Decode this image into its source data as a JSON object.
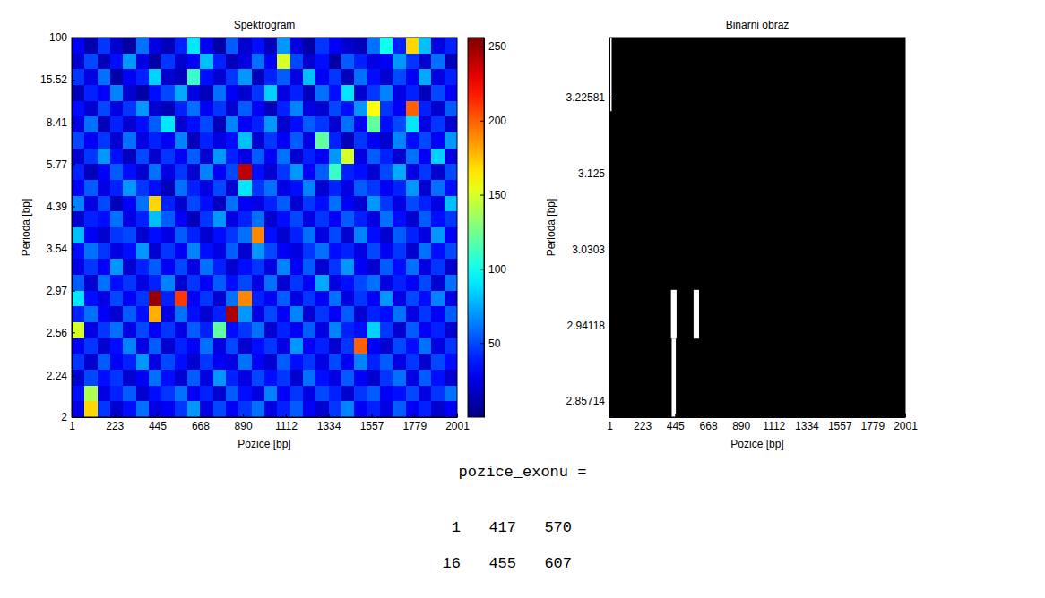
{
  "chart_data": [
    {
      "type": "heatmap",
      "title": "Spektrogram",
      "x_label": "Pozice [bp]",
      "y_label": "Perioda [bp]",
      "xlim": [
        1,
        2001
      ],
      "xticks": [
        1,
        223,
        445,
        668,
        890,
        1112,
        1334,
        1557,
        1779,
        2001
      ],
      "ylim": [
        2,
        100
      ],
      "yticks": [
        2,
        2.24,
        2.56,
        2.97,
        3.54,
        4.39,
        5.77,
        8.41,
        15.52,
        100
      ],
      "color_range": [
        0,
        256
      ],
      "color_ticks": [
        50,
        100,
        150,
        200,
        250
      ],
      "cells": [
        [
          30,
          12,
          45,
          20,
          8,
          60,
          25,
          15,
          40,
          90,
          30,
          10,
          55,
          20,
          35,
          15,
          70,
          25,
          10,
          45,
          30,
          20,
          15,
          60,
          100,
          40,
          170,
          80,
          25,
          40
        ],
        [
          20,
          50,
          15,
          35,
          70,
          25,
          10,
          45,
          20,
          30,
          80,
          40,
          15,
          25,
          60,
          30,
          150,
          50,
          20,
          35,
          10,
          55,
          40,
          25,
          30,
          70,
          45,
          20,
          60,
          15
        ],
        [
          45,
          25,
          60,
          10,
          30,
          40,
          85,
          20,
          15,
          110,
          35,
          20,
          45,
          70,
          15,
          40,
          55,
          25,
          80,
          30,
          45,
          15,
          60,
          35,
          20,
          50,
          30,
          75,
          25,
          40
        ],
        [
          15,
          40,
          30,
          65,
          20,
          10,
          35,
          50,
          75,
          25,
          15,
          60,
          30,
          20,
          45,
          85,
          25,
          40,
          15,
          60,
          35,
          90,
          20,
          45,
          65,
          25,
          40,
          15,
          50,
          30
        ],
        [
          35,
          20,
          50,
          25,
          45,
          70,
          20,
          15,
          40,
          60,
          30,
          45,
          20,
          55,
          30,
          15,
          40,
          65,
          25,
          20,
          50,
          35,
          70,
          160,
          45,
          30,
          200,
          40,
          20,
          55
        ],
        [
          25,
          60,
          15,
          40,
          20,
          35,
          55,
          90,
          20,
          35,
          50,
          15,
          65,
          30,
          40,
          70,
          20,
          35,
          55,
          45,
          20,
          60,
          30,
          120,
          35,
          50,
          90,
          25,
          45,
          20
        ],
        [
          50,
          30,
          45,
          20,
          60,
          25,
          40,
          30,
          65,
          15,
          40,
          25,
          35,
          80,
          20,
          45,
          30,
          55,
          25,
          120,
          40,
          15,
          45,
          30,
          20,
          65,
          35,
          50,
          30,
          70
        ],
        [
          20,
          45,
          70,
          35,
          15,
          50,
          20,
          45,
          30,
          55,
          20,
          70,
          40,
          25,
          55,
          30,
          60,
          20,
          40,
          30,
          70,
          150,
          25,
          55,
          40,
          20,
          60,
          30,
          85,
          25
        ],
        [
          40,
          15,
          30,
          55,
          35,
          20,
          60,
          25,
          45,
          20,
          65,
          30,
          50,
          240,
          35,
          20,
          45,
          70,
          30,
          55,
          110,
          40,
          35,
          20,
          50,
          75,
          25,
          45,
          20,
          50
        ],
        [
          30,
          55,
          25,
          40,
          70,
          45,
          35,
          15,
          60,
          40,
          25,
          50,
          20,
          90,
          45,
          60,
          25,
          35,
          65,
          20,
          40,
          25,
          55,
          45,
          30,
          40,
          70,
          20,
          60,
          35
        ],
        [
          65,
          25,
          50,
          15,
          30,
          60,
          170,
          40,
          20,
          50,
          35,
          15,
          60,
          30,
          25,
          40,
          55,
          20,
          45,
          35,
          60,
          30,
          20,
          70,
          45,
          25,
          50,
          40,
          25,
          80
        ],
        [
          20,
          40,
          35,
          60,
          25,
          40,
          80,
          55,
          30,
          15,
          45,
          70,
          25,
          40,
          60,
          20,
          35,
          50,
          25,
          45,
          30,
          55,
          40,
          25,
          60,
          35,
          20,
          55,
          35,
          45
        ],
        [
          80,
          30,
          20,
          45,
          50,
          20,
          35,
          25,
          55,
          40,
          20,
          35,
          45,
          60,
          190,
          35,
          20,
          40,
          60,
          25,
          50,
          20,
          65,
          35,
          20,
          55,
          40,
          25,
          70,
          30
        ],
        [
          35,
          60,
          45,
          25,
          35,
          70,
          20,
          45,
          30,
          65,
          35,
          25,
          55,
          20,
          70,
          50,
          30,
          25,
          45,
          60,
          35,
          40,
          25,
          50,
          30,
          45,
          20,
          60,
          35,
          50
        ],
        [
          25,
          45,
          30,
          70,
          20,
          40,
          55,
          30,
          50,
          25,
          60,
          40,
          20,
          35,
          45,
          25,
          65,
          30,
          55,
          20,
          45,
          70,
          30,
          20,
          55,
          35,
          60,
          25,
          45,
          20
        ],
        [
          55,
          20,
          60,
          35,
          45,
          25,
          40,
          65,
          20,
          45,
          30,
          55,
          35,
          50,
          25,
          60,
          20,
          45,
          30,
          75,
          25,
          35,
          50,
          60,
          25,
          40,
          30,
          50,
          20,
          60
        ],
        [
          90,
          35,
          25,
          50,
          30,
          45,
          250,
          40,
          210,
          30,
          45,
          20,
          60,
          190,
          40,
          30,
          55,
          25,
          45,
          30,
          60,
          25,
          45,
          30,
          70,
          25,
          50,
          35,
          65,
          25
        ],
        [
          40,
          60,
          30,
          20,
          55,
          35,
          180,
          25,
          60,
          35,
          20,
          40,
          245,
          70,
          25,
          50,
          30,
          65,
          20,
          45,
          30,
          55,
          20,
          40,
          35,
          60,
          25,
          45,
          30,
          55
        ],
        [
          150,
          25,
          45,
          60,
          25,
          50,
          30,
          45,
          25,
          55,
          40,
          120,
          35,
          45,
          60,
          20,
          40,
          30,
          55,
          25,
          65,
          40,
          35,
          85,
          45,
          20,
          55,
          30,
          40,
          20
        ],
        [
          30,
          45,
          20,
          35,
          65,
          25,
          55,
          20,
          40,
          30,
          60,
          25,
          50,
          20,
          35,
          45,
          25,
          70,
          30,
          40,
          20,
          45,
          200,
          30,
          20,
          50,
          35,
          60,
          25,
          45
        ],
        [
          45,
          20,
          55,
          30,
          40,
          70,
          25,
          50,
          35,
          20,
          45,
          30,
          25,
          60,
          30,
          20,
          55,
          35,
          45,
          25,
          50,
          30,
          65,
          40,
          55,
          25,
          45,
          20,
          50,
          35
        ],
        [
          20,
          50,
          35,
          45,
          20,
          30,
          60,
          35,
          20,
          55,
          25,
          70,
          40,
          25,
          50,
          35,
          45,
          20,
          60,
          35,
          25,
          55,
          30,
          20,
          45,
          60,
          25,
          55,
          35,
          20
        ],
        [
          35,
          140,
          25,
          40,
          55,
          20,
          35,
          45,
          60,
          30,
          40,
          20,
          55,
          35,
          25,
          65,
          30,
          45,
          25,
          50,
          40,
          20,
          45,
          55,
          30,
          35,
          50,
          25,
          45,
          60
        ],
        [
          25,
          170,
          45,
          20,
          35,
          60,
          25,
          30,
          45,
          70,
          25,
          50,
          30,
          45,
          60,
          25,
          40,
          55,
          30,
          20,
          45,
          65,
          30,
          40,
          25,
          55,
          30,
          40,
          20,
          30
        ]
      ]
    },
    {
      "type": "binary_image",
      "title": "Binarni obraz",
      "x_label": "Pozice [bp]",
      "y_label": "Perioda [bp]",
      "xlim": [
        1,
        2001
      ],
      "xticks": [
        1,
        223,
        445,
        668,
        890,
        1112,
        1334,
        1557,
        1779,
        2001
      ],
      "ylim": [
        2.84,
        3.31
      ],
      "yticks": [
        2.85714,
        2.94118,
        3.0303,
        3.125,
        3.22581
      ],
      "color": "#ffffff",
      "regions": [
        {
          "x": [
            1,
            16
          ],
          "y": [
            3.207,
            3.31
          ]
        },
        {
          "x": [
            417,
            455
          ],
          "y": [
            2.926,
            2.982
          ]
        },
        {
          "x": [
            422,
            450
          ],
          "y": [
            2.84,
            2.926
          ]
        },
        {
          "x": [
            570,
            607
          ],
          "y": [
            2.926,
            2.982
          ]
        }
      ]
    }
  ],
  "result": {
    "name": "pozice_exonu =",
    "rows": [
      [
        1,
        417,
        570
      ],
      [
        16,
        455,
        607
      ]
    ]
  }
}
